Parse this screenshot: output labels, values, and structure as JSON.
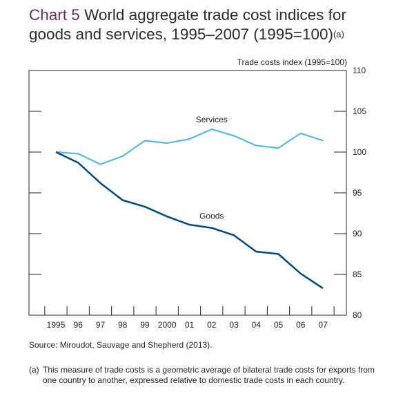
{
  "title": {
    "chart_number": "Chart 5",
    "text": "World aggregate trade cost indices for goods and services, 1995–2007 (1995=100)",
    "footnote_ref": "(a)"
  },
  "source": "Source:  Miroudot, Sauvage and Shepherd (2013).",
  "footnote": {
    "marker": "(a)",
    "line1": "This measure of trade costs is a geometric average of bilateral trade costs for exports from",
    "line2": "one country to another, expressed relative to domestic trade costs in each country."
  },
  "colors": {
    "goods": "#004a7c",
    "services": "#5ab8e4",
    "axis": "#231f20",
    "title_accent": "#6a2c5f"
  },
  "chart_data": {
    "type": "line",
    "title": "World aggregate trade cost indices for goods and services, 1995–2007 (1995=100)",
    "ylabel": "Trade costs index (1995=100)",
    "xlabel": "",
    "categories": [
      "1995",
      "96",
      "97",
      "98",
      "99",
      "2000",
      "01",
      "02",
      "03",
      "04",
      "05",
      "06",
      "07"
    ],
    "ylim": [
      80,
      110
    ],
    "yticks": [
      80,
      85,
      90,
      95,
      100,
      105,
      110
    ],
    "grid": false,
    "series": [
      {
        "name": "Services",
        "values": [
          100,
          99.8,
          98.5,
          99.5,
          101.4,
          101.1,
          101.6,
          102.8,
          102.0,
          100.8,
          100.5,
          102.3,
          101.4
        ]
      },
      {
        "name": "Goods",
        "values": [
          100,
          98.7,
          96.2,
          94.1,
          93.3,
          92.1,
          91.1,
          90.7,
          89.8,
          87.8,
          87.5,
          85.1,
          83.3
        ]
      }
    ]
  }
}
